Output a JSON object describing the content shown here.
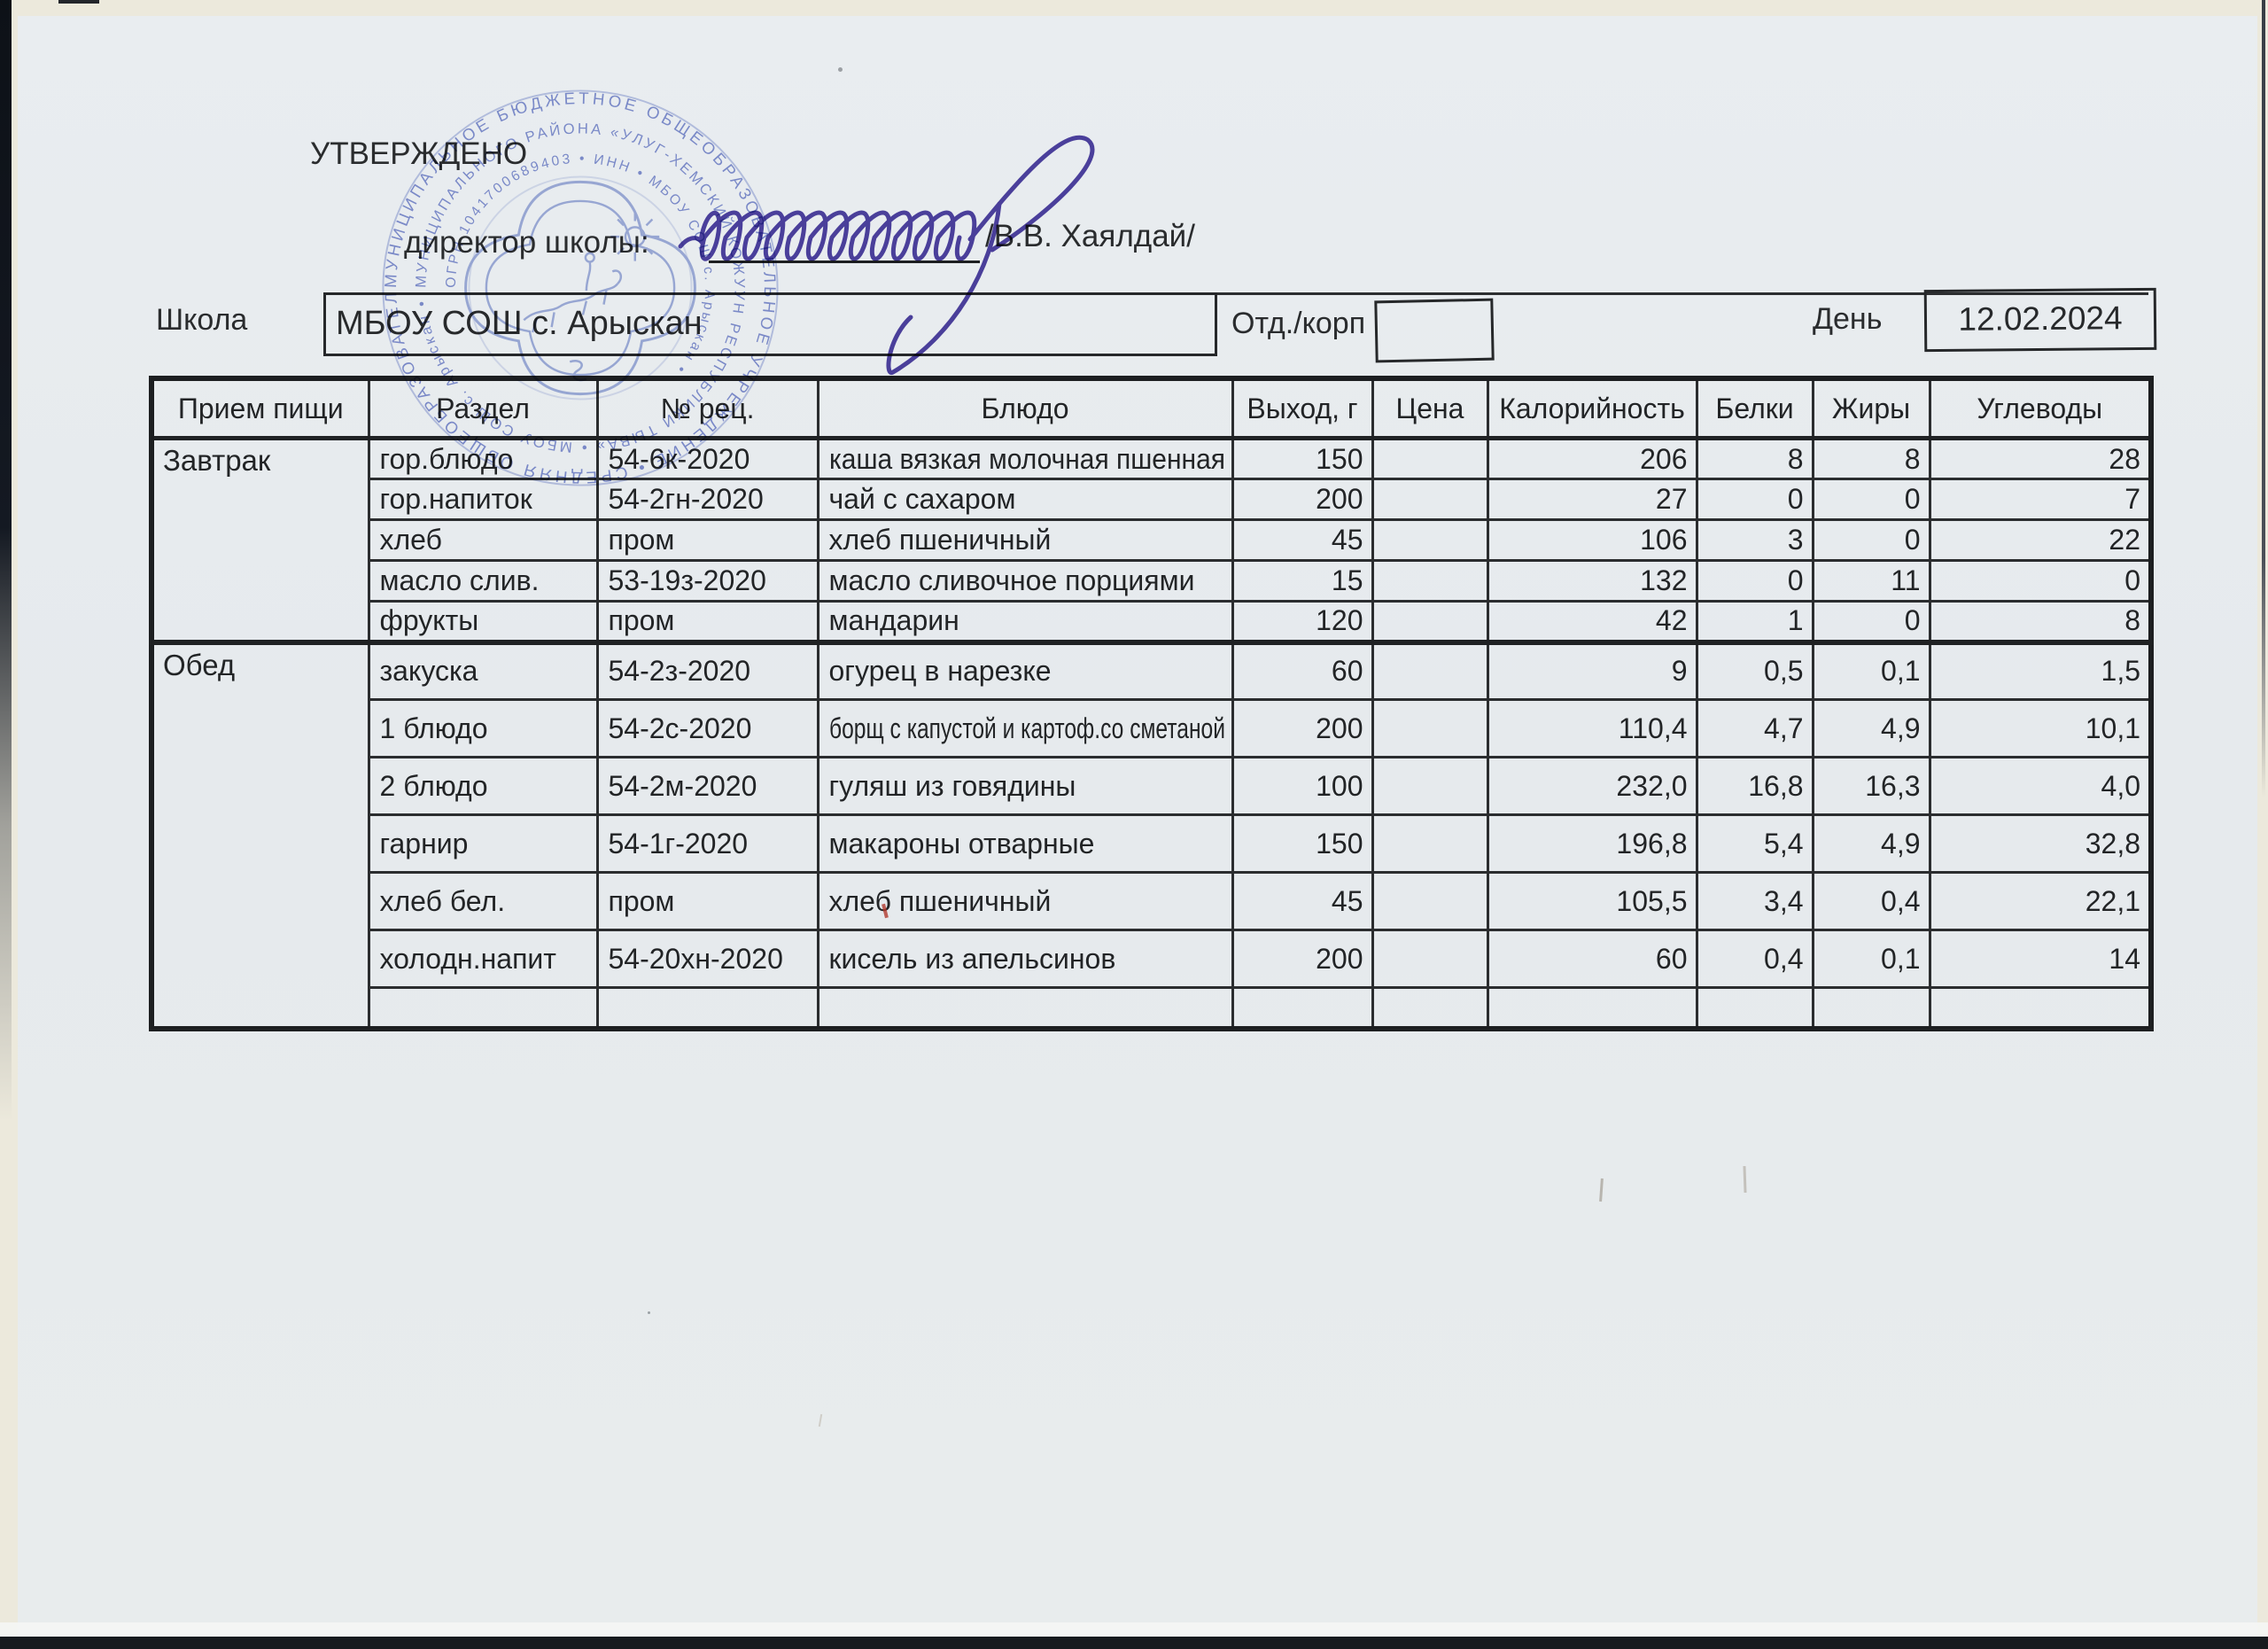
{
  "form": {
    "approved_label": "УТВЕРЖДЕНО",
    "director_label": "директор школы:",
    "director_name": "/В.В. Хаялдай/",
    "school_label": "Школа",
    "school_value": "МБОУ СОШ с. Арыскан",
    "dept_label": "Отд./корп",
    "dept_value": "",
    "day_label": "День",
    "day_value": "12.02.2024"
  },
  "stamp": {
    "color": "#7585cf",
    "outer_ring_text": "МУНИЦИПАЛЬНОЕ БЮДЖЕТНОЕ ОБЩЕОБРАЗОВАТЕЛЬНОЕ УЧРЕЖДЕНИЕ • СРЕДНЯЯ ОБЩЕОБРАЗОВАТЕЛЬНАЯ ШКОЛА •",
    "middle_ring_text": "МУНИЦИПАЛЬНОГО РАЙОНА «УЛУГ-ХЕМСКИЙ КОЖУУН РЕСПУБЛИКИ ТЫВА» • МБОУ СОШ с. Арыскан •",
    "inner_ring_text": "ОГРН 1041700689403 • ИНН • МБОУ СОШ с. Арыскан •"
  },
  "table": {
    "headers": [
      "Прием пищи",
      "Раздел",
      "№ рец.",
      "Блюдо",
      "Выход, г",
      "Цена",
      "Калорийность",
      "Белки",
      "Жиры",
      "Углеводы"
    ],
    "sections": [
      {
        "meal": "Завтрак",
        "rows": [
          {
            "razdel": "гор.блюдо",
            "rec": "54-6к-2020",
            "dish": "каша вязкая молочная пшенная",
            "out": "150",
            "price": "",
            "kcal": "206",
            "protein": "8",
            "fat": "8",
            "carbs": "28"
          },
          {
            "razdel": "гор.напиток",
            "rec": "54-2гн-2020",
            "dish": "чай с сахаром",
            "out": "200",
            "price": "",
            "kcal": "27",
            "protein": "0",
            "fat": "0",
            "carbs": "7"
          },
          {
            "razdel": "хлеб",
            "rec": "пром",
            "dish": "хлеб пшеничный",
            "out": "45",
            "price": "",
            "kcal": "106",
            "protein": "3",
            "fat": "0",
            "carbs": "22"
          },
          {
            "razdel": "масло слив.",
            "rec": "53-19з-2020",
            "dish": "масло сливочное порциями",
            "out": "15",
            "price": "",
            "kcal": "132",
            "protein": "0",
            "fat": "11",
            "carbs": "0"
          },
          {
            "razdel": "фрукты",
            "rec": "пром",
            "dish": "мандарин",
            "out": "120",
            "price": "",
            "kcal": "42",
            "protein": "1",
            "fat": "0",
            "carbs": "8"
          }
        ]
      },
      {
        "meal": "Обед",
        "rows": [
          {
            "razdel": "закуска",
            "rec": "54-2з-2020",
            "dish": "огурец в нарезке",
            "out": "60",
            "price": "",
            "kcal": "9",
            "protein": "0,5",
            "fat": "0,1",
            "carbs": "1,5"
          },
          {
            "razdel": "1 блюдо",
            "rec": "54-2с-2020",
            "dish": "борщ с капустой и картоф.со сметаной",
            "out": "200",
            "price": "",
            "kcal": "110,4",
            "protein": "4,7",
            "fat": "4,9",
            "carbs": "10,1"
          },
          {
            "razdel": "2 блюдо",
            "rec": "54-2м-2020",
            "dish": "гуляш из говядины",
            "out": "100",
            "price": "",
            "kcal": "232,0",
            "protein": "16,8",
            "fat": "16,3",
            "carbs": "4,0"
          },
          {
            "razdel": "гарнир",
            "rec": "54-1г-2020",
            "dish": "макароны отварные",
            "out": "150",
            "price": "",
            "kcal": "196,8",
            "protein": "5,4",
            "fat": "4,9",
            "carbs": "32,8"
          },
          {
            "razdel": "хлеб бел.",
            "rec": "пром",
            "dish": "хлеб пшеничный",
            "out": "45",
            "price": "",
            "kcal": "105,5",
            "protein": "3,4",
            "fat": "0,4",
            "carbs": "22,1"
          },
          {
            "razdel": "холодн.напит",
            "rec": "54-20хн-2020",
            "dish": "кисель из апельсинов",
            "out": "200",
            "price": "",
            "kcal": "60",
            "protein": "0,4",
            "fat": "0,1",
            "carbs": "14"
          },
          {
            "razdel": "",
            "rec": "",
            "dish": "",
            "out": "",
            "price": "",
            "kcal": "",
            "protein": "",
            "fat": "",
            "carbs": ""
          }
        ]
      }
    ]
  }
}
